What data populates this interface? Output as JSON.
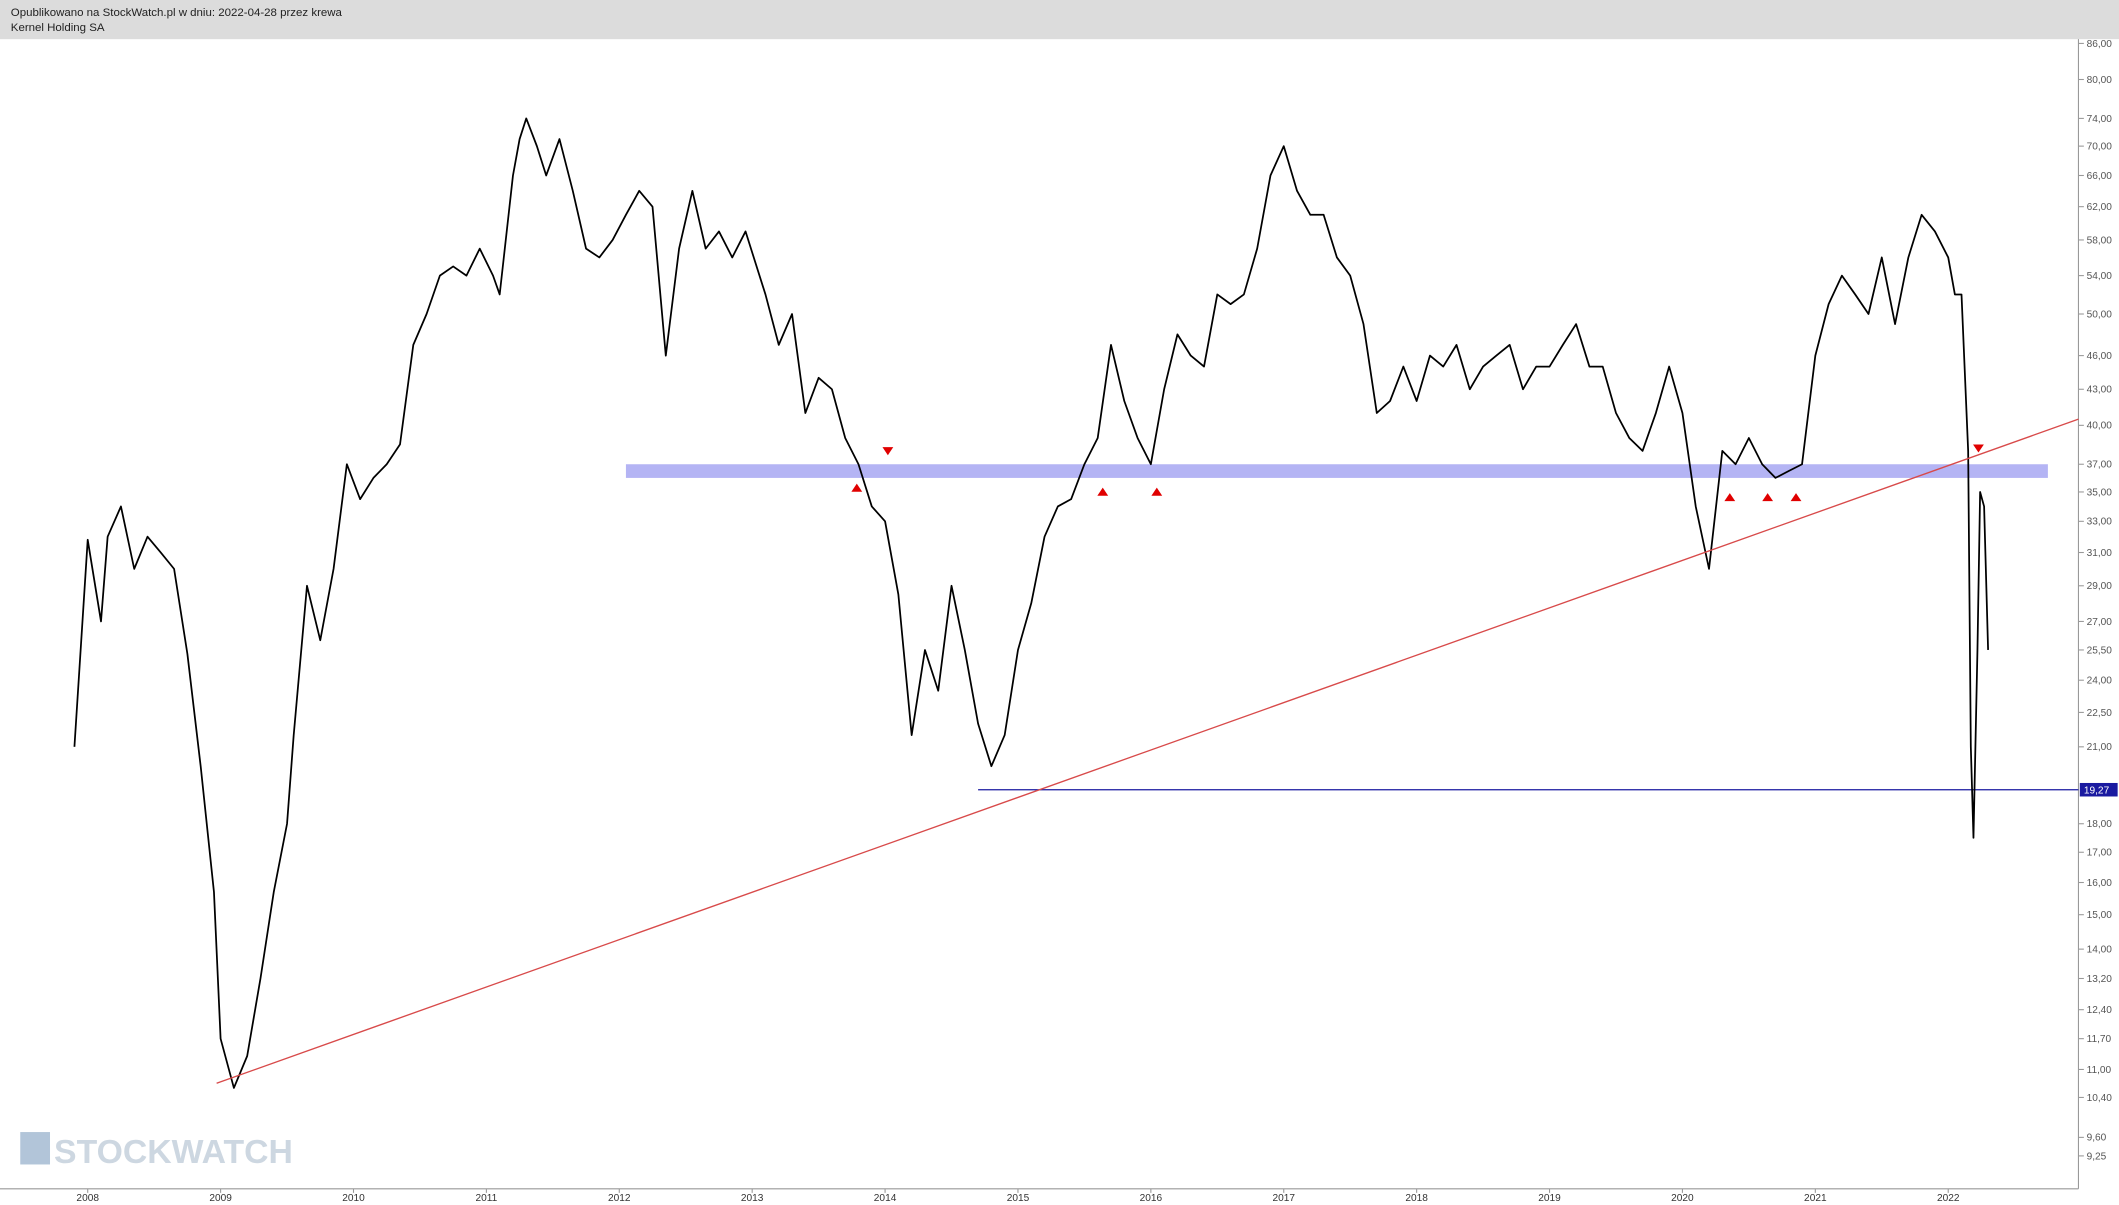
{
  "header": {
    "published": "Opublikowano na StockWatch.pl w dniu: 2022-04-28 przez krewa",
    "instrument": "Kernel Holding SA"
  },
  "watermark": "STOCKWATCH",
  "chart_data": {
    "type": "line",
    "log_scale": true,
    "color": "#000000",
    "xlim": [
      2007.34,
      2022.98
    ],
    "xticks": [
      2008,
      2009,
      2010,
      2011,
      2012,
      2013,
      2014,
      2015,
      2016,
      2017,
      2018,
      2019,
      2020,
      2021,
      2022
    ],
    "ylim": [
      8.66,
      86.5
    ],
    "yticks": [
      {
        "value": 86,
        "label": "86,00"
      },
      {
        "value": 80,
        "label": "80,00"
      },
      {
        "value": 74,
        "label": "74,00"
      },
      {
        "value": 70,
        "label": "70,00"
      },
      {
        "value": 66,
        "label": "66,00"
      },
      {
        "value": 62,
        "label": "62,00"
      },
      {
        "value": 58,
        "label": "58,00"
      },
      {
        "value": 54,
        "label": "54,00"
      },
      {
        "value": 50,
        "label": "50,00"
      },
      {
        "value": 46,
        "label": "46,00"
      },
      {
        "value": 43,
        "label": "43,00"
      },
      {
        "value": 40,
        "label": "40,00"
      },
      {
        "value": 37,
        "label": "37,00"
      },
      {
        "value": 35,
        "label": "35,00"
      },
      {
        "value": 33,
        "label": "33,00"
      },
      {
        "value": 31,
        "label": "31,00"
      },
      {
        "value": 29,
        "label": "29,00"
      },
      {
        "value": 27,
        "label": "27,00"
      },
      {
        "value": 25.5,
        "label": "25,50"
      },
      {
        "value": 24,
        "label": "24,00"
      },
      {
        "value": 22.5,
        "label": "22,50"
      },
      {
        "value": 21,
        "label": "21,00"
      },
      {
        "value": 18,
        "label": "18,00"
      },
      {
        "value": 17,
        "label": "17,00"
      },
      {
        "value": 16,
        "label": "16,00"
      },
      {
        "value": 15,
        "label": "15,00"
      },
      {
        "value": 14,
        "label": "14,00"
      },
      {
        "value": 13.2,
        "label": "13,20"
      },
      {
        "value": 12.4,
        "label": "12,40"
      },
      {
        "value": 11.7,
        "label": "11,70"
      },
      {
        "value": 11,
        "label": "11,00"
      },
      {
        "value": 10.4,
        "label": "10,40"
      },
      {
        "value": 9.6,
        "label": "9,60"
      },
      {
        "value": 9.25,
        "label": "9,25"
      }
    ],
    "x": [
      2007.9,
      2008.0,
      2008.1,
      2008.15,
      2008.25,
      2008.35,
      2008.45,
      2008.55,
      2008.65,
      2008.75,
      2008.85,
      2008.95,
      2009.0,
      2009.1,
      2009.2,
      2009.3,
      2009.4,
      2009.5,
      2009.55,
      2009.65,
      2009.75,
      2009.85,
      2009.95,
      2010.05,
      2010.15,
      2010.25,
      2010.35,
      2010.45,
      2010.55,
      2010.65,
      2010.75,
      2010.85,
      2010.95,
      2011.05,
      2011.1,
      2011.2,
      2011.25,
      2011.3,
      2011.38,
      2011.45,
      2011.55,
      2011.65,
      2011.75,
      2011.85,
      2011.95,
      2012.05,
      2012.15,
      2012.25,
      2012.35,
      2012.45,
      2012.55,
      2012.65,
      2012.75,
      2012.85,
      2012.95,
      2013.1,
      2013.2,
      2013.3,
      2013.4,
      2013.5,
      2013.6,
      2013.7,
      2013.8,
      2013.9,
      2014.0,
      2014.1,
      2014.2,
      2014.3,
      2014.4,
      2014.5,
      2014.6,
      2014.7,
      2014.8,
      2014.9,
      2015.0,
      2015.1,
      2015.2,
      2015.3,
      2015.4,
      2015.5,
      2015.6,
      2015.7,
      2015.8,
      2015.9,
      2016.0,
      2016.1,
      2016.2,
      2016.3,
      2016.4,
      2016.5,
      2016.6,
      2016.7,
      2016.8,
      2016.9,
      2017.0,
      2017.1,
      2017.2,
      2017.3,
      2017.4,
      2017.5,
      2017.6,
      2017.7,
      2017.8,
      2017.9,
      2018.0,
      2018.1,
      2018.2,
      2018.3,
      2018.4,
      2018.5,
      2018.6,
      2018.7,
      2018.8,
      2018.9,
      2019.0,
      2019.1,
      2019.2,
      2019.3,
      2019.4,
      2019.5,
      2019.6,
      2019.7,
      2019.8,
      2019.9,
      2020.0,
      2020.1,
      2020.2,
      2020.3,
      2020.4,
      2020.5,
      2020.6,
      2020.7,
      2020.8,
      2020.9,
      2021.0,
      2021.1,
      2021.2,
      2021.3,
      2021.4,
      2021.5,
      2021.6,
      2021.7,
      2021.8,
      2021.9,
      2022.0,
      2022.05,
      2022.1,
      2022.15,
      2022.17,
      2022.19,
      2022.22,
      2022.24,
      2022.27,
      2022.3
    ],
    "values": [
      21,
      31.8,
      27,
      32,
      34,
      30,
      32,
      31,
      30,
      25.3,
      20.2,
      15.7,
      11.7,
      10.6,
      11.3,
      13.2,
      15.7,
      18,
      21.5,
      29,
      26,
      30,
      37,
      34.5,
      36,
      37,
      38.5,
      47,
      50,
      54,
      55,
      54,
      57,
      54,
      52,
      66,
      71,
      74,
      70,
      66,
      71,
      64,
      57,
      56,
      58,
      61,
      64,
      62,
      46,
      57,
      64,
      57,
      59,
      56,
      59,
      52,
      47,
      50,
      41,
      44,
      43,
      39,
      37,
      34,
      33,
      28.5,
      21.5,
      25.5,
      23.5,
      29,
      25.5,
      22,
      20.2,
      21.5,
      25.5,
      28,
      32,
      34,
      34.5,
      37,
      39,
      47,
      42,
      39,
      37,
      43,
      48,
      46,
      45,
      52,
      51,
      52,
      57,
      66,
      70,
      64,
      61,
      61,
      56,
      54,
      49,
      41,
      42,
      45,
      42,
      46,
      45,
      47,
      43,
      45,
      46,
      47,
      43,
      45,
      45,
      47,
      49,
      45,
      45,
      41,
      39,
      38,
      41,
      45,
      41,
      34,
      30,
      38,
      37,
      39,
      37,
      36,
      36.5,
      37,
      46,
      51,
      54,
      52,
      50,
      56,
      49,
      56,
      61,
      59,
      56,
      52,
      52,
      38,
      21,
      17.5,
      25.5,
      35,
      34,
      25.5
    ],
    "band": {
      "values": [
        36,
        37
      ],
      "x": [
        2012.05,
        2022.75
      ],
      "color": "#b4b4f4"
    },
    "trendline": {
      "x": [
        2008.97,
        2022.98
      ],
      "values": [
        10.7,
        40.5
      ],
      "color": "#d84a4a"
    },
    "level": {
      "value": 19.27,
      "label": "19,27",
      "x_start": 2014.7,
      "color": "#1a1aa0"
    }
  }
}
